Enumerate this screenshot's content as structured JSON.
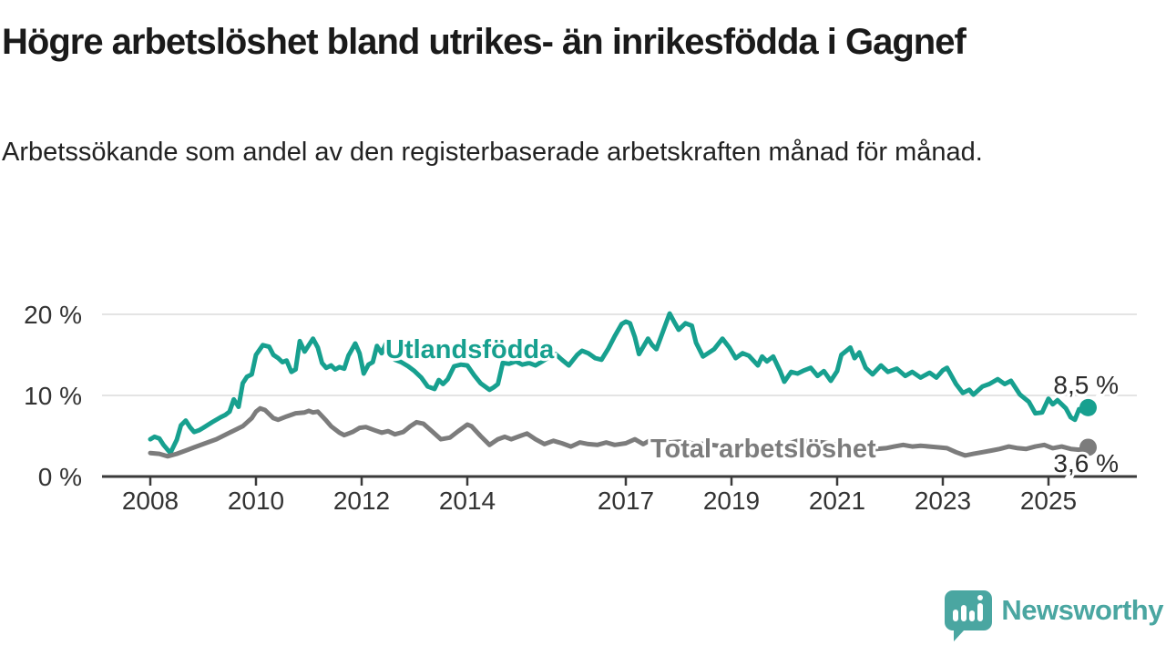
{
  "header": {
    "title": "Högre arbetslöshet bland utrikes- än inrikesfödda i Gagnef",
    "subtitle": "Arbetssökande som andel av den registerbaserade arbetskraften månad för månad."
  },
  "branding": {
    "name": "Newsworthy",
    "logo_icon": "speech-bubble-bar-chart-icon",
    "color": "#4AA6A1"
  },
  "colors": {
    "utlandsfodda": "#17A08F",
    "total": "#7C7C7C",
    "axis": "#3A3A3A",
    "grid": "#DBDBDB",
    "tick_text": "#333333",
    "annotation_text": "#2B2B2B",
    "background": "#FFFFFF"
  },
  "chart_data": {
    "type": "line",
    "unit": "%",
    "x_axis": {
      "ticks": [
        {
          "value": 2008,
          "label": "2008"
        },
        {
          "value": 2010,
          "label": "2010"
        },
        {
          "value": 2012,
          "label": "2012"
        },
        {
          "value": 2014,
          "label": "2014"
        },
        {
          "value": 2017,
          "label": "2017"
        },
        {
          "value": 2019,
          "label": "2019"
        },
        {
          "value": 2021,
          "label": "2021"
        },
        {
          "value": 2023,
          "label": "2023"
        },
        {
          "value": 2025,
          "label": "2025"
        }
      ],
      "range": [
        2007.1,
        2026.7
      ]
    },
    "y_axis": {
      "ticks": [
        {
          "value": 0,
          "label": "0 %"
        },
        {
          "value": 10,
          "label": "10 %"
        },
        {
          "value": 20,
          "label": "20 %"
        }
      ],
      "range": [
        0,
        21
      ],
      "grid": true
    },
    "series": [
      {
        "id": "utlandsfodda",
        "name": "Utlandsfödda",
        "color": "#17A08F",
        "end_label": "8,5 %",
        "end_value": 8.5,
        "points": [
          [
            2008.0,
            4.6
          ],
          [
            2008.08,
            4.9
          ],
          [
            2008.17,
            4.7
          ],
          [
            2008.25,
            3.9
          ],
          [
            2008.38,
            2.9
          ],
          [
            2008.5,
            4.5
          ],
          [
            2008.58,
            6.3
          ],
          [
            2008.67,
            6.9
          ],
          [
            2008.75,
            6.1
          ],
          [
            2008.83,
            5.5
          ],
          [
            2008.92,
            5.7
          ],
          [
            2009.0,
            6.0
          ],
          [
            2009.17,
            6.7
          ],
          [
            2009.33,
            7.3
          ],
          [
            2009.42,
            7.6
          ],
          [
            2009.5,
            8.0
          ],
          [
            2009.58,
            9.5
          ],
          [
            2009.67,
            8.6
          ],
          [
            2009.75,
            11.5
          ],
          [
            2009.83,
            12.3
          ],
          [
            2009.92,
            12.6
          ],
          [
            2010.0,
            15.0
          ],
          [
            2010.13,
            16.2
          ],
          [
            2010.25,
            16.0
          ],
          [
            2010.33,
            15.0
          ],
          [
            2010.42,
            14.6
          ],
          [
            2010.5,
            14.1
          ],
          [
            2010.58,
            14.3
          ],
          [
            2010.67,
            12.9
          ],
          [
            2010.75,
            13.2
          ],
          [
            2010.83,
            16.7
          ],
          [
            2010.92,
            15.4
          ],
          [
            2011.08,
            17.0
          ],
          [
            2011.17,
            15.9
          ],
          [
            2011.25,
            14.0
          ],
          [
            2011.33,
            13.4
          ],
          [
            2011.42,
            13.7
          ],
          [
            2011.5,
            13.2
          ],
          [
            2011.58,
            13.5
          ],
          [
            2011.67,
            13.3
          ],
          [
            2011.75,
            14.9
          ],
          [
            2011.88,
            16.4
          ],
          [
            2011.96,
            15.2
          ],
          [
            2012.04,
            12.7
          ],
          [
            2012.13,
            13.8
          ],
          [
            2012.21,
            14.1
          ],
          [
            2012.29,
            16.1
          ],
          [
            2012.38,
            15.2
          ],
          [
            2012.46,
            16.4
          ],
          [
            2012.54,
            15.0
          ],
          [
            2012.63,
            14.4
          ],
          [
            2012.75,
            14.1
          ],
          [
            2012.88,
            13.6
          ],
          [
            2013.0,
            13.0
          ],
          [
            2013.13,
            12.2
          ],
          [
            2013.25,
            11.1
          ],
          [
            2013.38,
            10.8
          ],
          [
            2013.46,
            11.9
          ],
          [
            2013.54,
            11.4
          ],
          [
            2013.63,
            12.0
          ],
          [
            2013.75,
            13.6
          ],
          [
            2013.88,
            13.8
          ],
          [
            2014.0,
            13.7
          ],
          [
            2014.13,
            12.5
          ],
          [
            2014.25,
            11.5
          ],
          [
            2014.42,
            10.7
          ],
          [
            2014.5,
            11.0
          ],
          [
            2014.58,
            11.4
          ],
          [
            2014.67,
            14.0
          ],
          [
            2014.79,
            13.9
          ],
          [
            2014.92,
            14.2
          ],
          [
            2015.04,
            13.8
          ],
          [
            2015.17,
            14.0
          ],
          [
            2015.29,
            13.7
          ],
          [
            2015.42,
            14.2
          ],
          [
            2015.54,
            14.7
          ],
          [
            2015.67,
            15.1
          ],
          [
            2015.79,
            14.4
          ],
          [
            2015.92,
            13.7
          ],
          [
            2016.08,
            15.0
          ],
          [
            2016.17,
            15.5
          ],
          [
            2016.29,
            15.2
          ],
          [
            2016.42,
            14.6
          ],
          [
            2016.54,
            14.4
          ],
          [
            2016.67,
            15.8
          ],
          [
            2016.79,
            17.3
          ],
          [
            2016.92,
            18.8
          ],
          [
            2017.0,
            19.1
          ],
          [
            2017.08,
            18.9
          ],
          [
            2017.17,
            17.2
          ],
          [
            2017.25,
            15.1
          ],
          [
            2017.42,
            17.0
          ],
          [
            2017.5,
            16.2
          ],
          [
            2017.58,
            15.7
          ],
          [
            2017.71,
            18.0
          ],
          [
            2017.83,
            20.1
          ],
          [
            2017.92,
            19.0
          ],
          [
            2018.0,
            18.1
          ],
          [
            2018.13,
            18.9
          ],
          [
            2018.25,
            18.6
          ],
          [
            2018.33,
            16.5
          ],
          [
            2018.46,
            14.8
          ],
          [
            2018.58,
            15.3
          ],
          [
            2018.67,
            15.7
          ],
          [
            2018.83,
            17.0
          ],
          [
            2018.96,
            15.9
          ],
          [
            2019.08,
            14.6
          ],
          [
            2019.21,
            15.2
          ],
          [
            2019.33,
            14.9
          ],
          [
            2019.5,
            13.7
          ],
          [
            2019.58,
            14.8
          ],
          [
            2019.67,
            14.2
          ],
          [
            2019.79,
            14.8
          ],
          [
            2019.92,
            13.0
          ],
          [
            2020.0,
            11.7
          ],
          [
            2020.13,
            12.9
          ],
          [
            2020.25,
            12.7
          ],
          [
            2020.38,
            13.1
          ],
          [
            2020.5,
            13.4
          ],
          [
            2020.63,
            12.4
          ],
          [
            2020.75,
            13.0
          ],
          [
            2020.88,
            11.8
          ],
          [
            2021.0,
            13.0
          ],
          [
            2021.08,
            15.0
          ],
          [
            2021.25,
            15.9
          ],
          [
            2021.33,
            14.6
          ],
          [
            2021.42,
            15.3
          ],
          [
            2021.54,
            13.4
          ],
          [
            2021.67,
            12.6
          ],
          [
            2021.83,
            13.7
          ],
          [
            2021.96,
            12.9
          ],
          [
            2022.13,
            13.3
          ],
          [
            2022.29,
            12.4
          ],
          [
            2022.42,
            12.9
          ],
          [
            2022.58,
            12.2
          ],
          [
            2022.75,
            12.8
          ],
          [
            2022.88,
            12.2
          ],
          [
            2023.0,
            13.1
          ],
          [
            2023.08,
            13.4
          ],
          [
            2023.25,
            11.4
          ],
          [
            2023.38,
            10.3
          ],
          [
            2023.5,
            10.7
          ],
          [
            2023.58,
            10.1
          ],
          [
            2023.75,
            11.1
          ],
          [
            2023.88,
            11.4
          ],
          [
            2024.04,
            12.0
          ],
          [
            2024.17,
            11.4
          ],
          [
            2024.29,
            11.8
          ],
          [
            2024.46,
            10.1
          ],
          [
            2024.63,
            9.2
          ],
          [
            2024.75,
            7.8
          ],
          [
            2024.88,
            7.9
          ],
          [
            2025.0,
            9.6
          ],
          [
            2025.08,
            8.9
          ],
          [
            2025.17,
            9.4
          ],
          [
            2025.33,
            8.4
          ],
          [
            2025.42,
            7.3
          ],
          [
            2025.5,
            7.0
          ],
          [
            2025.58,
            8.3
          ],
          [
            2025.67,
            7.9
          ],
          [
            2025.75,
            8.5
          ]
        ]
      },
      {
        "id": "total",
        "name": "Total arbetslöshet",
        "color": "#7C7C7C",
        "end_label": "3,6 %",
        "end_value": 3.6,
        "points": [
          [
            2008.0,
            2.9
          ],
          [
            2008.17,
            2.8
          ],
          [
            2008.33,
            2.5
          ],
          [
            2008.5,
            2.8
          ],
          [
            2008.67,
            3.2
          ],
          [
            2008.83,
            3.6
          ],
          [
            2009.0,
            4.0
          ],
          [
            2009.25,
            4.6
          ],
          [
            2009.5,
            5.4
          ],
          [
            2009.75,
            6.2
          ],
          [
            2009.92,
            7.2
          ],
          [
            2010.0,
            8.0
          ],
          [
            2010.08,
            8.4
          ],
          [
            2010.17,
            8.2
          ],
          [
            2010.33,
            7.2
          ],
          [
            2010.42,
            7.0
          ],
          [
            2010.58,
            7.4
          ],
          [
            2010.75,
            7.8
          ],
          [
            2010.92,
            7.9
          ],
          [
            2011.0,
            8.1
          ],
          [
            2011.08,
            7.9
          ],
          [
            2011.17,
            8.0
          ],
          [
            2011.33,
            6.9
          ],
          [
            2011.42,
            6.2
          ],
          [
            2011.58,
            5.4
          ],
          [
            2011.67,
            5.1
          ],
          [
            2011.83,
            5.5
          ],
          [
            2011.96,
            6.0
          ],
          [
            2012.08,
            6.1
          ],
          [
            2012.25,
            5.7
          ],
          [
            2012.38,
            5.4
          ],
          [
            2012.5,
            5.6
          ],
          [
            2012.63,
            5.2
          ],
          [
            2012.79,
            5.5
          ],
          [
            2012.92,
            6.2
          ],
          [
            2013.04,
            6.7
          ],
          [
            2013.17,
            6.5
          ],
          [
            2013.33,
            5.6
          ],
          [
            2013.5,
            4.6
          ],
          [
            2013.67,
            4.8
          ],
          [
            2013.83,
            5.6
          ],
          [
            2014.0,
            6.4
          ],
          [
            2014.08,
            6.2
          ],
          [
            2014.25,
            5.0
          ],
          [
            2014.42,
            3.9
          ],
          [
            2014.58,
            4.6
          ],
          [
            2014.71,
            4.9
          ],
          [
            2014.83,
            4.6
          ],
          [
            2015.0,
            5.0
          ],
          [
            2015.13,
            5.3
          ],
          [
            2015.29,
            4.6
          ],
          [
            2015.46,
            4.0
          ],
          [
            2015.63,
            4.4
          ],
          [
            2015.79,
            4.1
          ],
          [
            2015.96,
            3.7
          ],
          [
            2016.13,
            4.2
          ],
          [
            2016.29,
            4.0
          ],
          [
            2016.46,
            3.9
          ],
          [
            2016.63,
            4.2
          ],
          [
            2016.79,
            3.9
          ],
          [
            2017.0,
            4.1
          ],
          [
            2017.17,
            4.6
          ],
          [
            2017.33,
            4.0
          ],
          [
            2017.5,
            4.6
          ],
          [
            2017.67,
            4.4
          ],
          [
            2017.83,
            4.2
          ],
          [
            2018.0,
            4.3
          ],
          [
            2018.25,
            4.1
          ],
          [
            2018.5,
            4.0
          ],
          [
            2018.75,
            3.8
          ],
          [
            2019.0,
            3.8
          ],
          [
            2019.25,
            3.7
          ],
          [
            2019.5,
            3.6
          ],
          [
            2019.75,
            3.7
          ],
          [
            2020.0,
            3.9
          ],
          [
            2020.25,
            4.4
          ],
          [
            2020.5,
            4.3
          ],
          [
            2020.75,
            4.2
          ],
          [
            2021.0,
            3.9
          ],
          [
            2021.25,
            3.7
          ],
          [
            2021.42,
            3.4
          ],
          [
            2021.58,
            3.3
          ],
          [
            2021.75,
            3.4
          ],
          [
            2021.92,
            3.5
          ],
          [
            2022.08,
            3.7
          ],
          [
            2022.25,
            3.9
          ],
          [
            2022.42,
            3.7
          ],
          [
            2022.58,
            3.8
          ],
          [
            2022.75,
            3.7
          ],
          [
            2022.92,
            3.6
          ],
          [
            2023.08,
            3.5
          ],
          [
            2023.25,
            3.0
          ],
          [
            2023.42,
            2.6
          ],
          [
            2023.58,
            2.8
          ],
          [
            2023.75,
            3.0
          ],
          [
            2023.92,
            3.2
          ],
          [
            2024.08,
            3.4
          ],
          [
            2024.25,
            3.7
          ],
          [
            2024.42,
            3.5
          ],
          [
            2024.58,
            3.4
          ],
          [
            2024.75,
            3.7
          ],
          [
            2024.92,
            3.9
          ],
          [
            2025.08,
            3.5
          ],
          [
            2025.25,
            3.7
          ],
          [
            2025.42,
            3.4
          ],
          [
            2025.58,
            3.3
          ],
          [
            2025.75,
            3.6
          ]
        ]
      }
    ]
  }
}
